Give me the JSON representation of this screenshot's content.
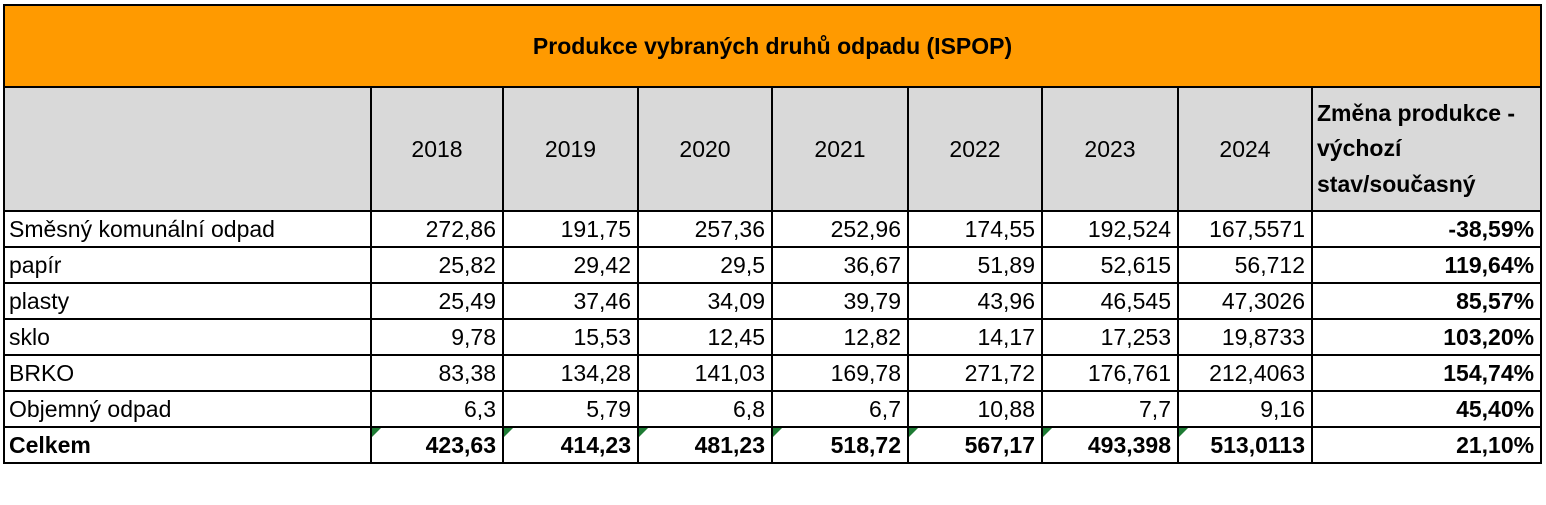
{
  "table": {
    "title": "Produkce vybraných druhů odpadu (ISPOP)",
    "years": [
      "2018",
      "2019",
      "2020",
      "2021",
      "2022",
      "2023",
      "2024"
    ],
    "change_header": "Změna produkce - výchozí stav/současný",
    "rows": [
      {
        "label": "Směsný komunální odpad",
        "values": [
          "272,86",
          "191,75",
          "257,36",
          "252,96",
          "174,55",
          "192,524",
          "167,5571"
        ],
        "change": "-38,59%"
      },
      {
        "label": "papír",
        "values": [
          "25,82",
          "29,42",
          "29,5",
          "36,67",
          "51,89",
          "52,615",
          "56,712"
        ],
        "change": "119,64%"
      },
      {
        "label": "plasty",
        "values": [
          "25,49",
          "37,46",
          "34,09",
          "39,79",
          "43,96",
          "46,545",
          "47,3026"
        ],
        "change": "85,57%"
      },
      {
        "label": "sklo",
        "values": [
          "9,78",
          "15,53",
          "12,45",
          "12,82",
          "14,17",
          "17,253",
          "19,8733"
        ],
        "change": "103,20%"
      },
      {
        "label": "BRKO",
        "values": [
          "83,38",
          "134,28",
          "141,03",
          "169,78",
          "271,72",
          "176,761",
          "212,4063"
        ],
        "change": "154,74%"
      },
      {
        "label": "Objemný odpad",
        "values": [
          "6,3",
          "5,79",
          "6,8",
          "6,7",
          "10,88",
          "7,7",
          "9,16"
        ],
        "change": "45,40%"
      }
    ],
    "total": {
      "label": "Celkem",
      "values": [
        "423,63",
        "414,23",
        "481,23",
        "518,72",
        "567,17",
        "493,398",
        "513,0113"
      ],
      "change": "21,10%"
    }
  },
  "colors": {
    "title_bg": "#ff9a00",
    "header_bg": "#d9d9d9",
    "error_marker": "#1e7b34"
  }
}
